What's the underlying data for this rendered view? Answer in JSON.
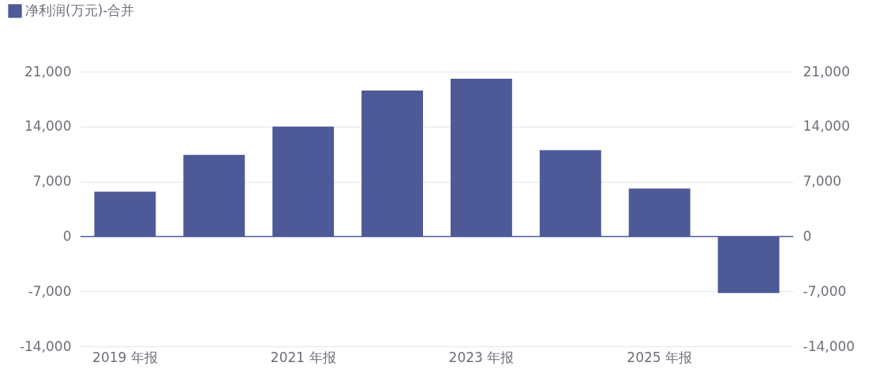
{
  "chart_data": {
    "type": "bar",
    "categories": [
      "2019 年报",
      null,
      "2021 年报",
      null,
      "2023 年报",
      null,
      "2025 年报",
      null
    ],
    "series": [
      {
        "name": "净利润(万元)-合并",
        "color": "#4e5a97",
        "values": [
          5700,
          10400,
          14000,
          18600,
          20100,
          11000,
          6100,
          -7200
        ]
      }
    ],
    "ylim": [
      -14000,
      21000
    ],
    "yticks": [
      {
        "value": -14000,
        "label": "-14,000"
      },
      {
        "value": -7000,
        "label": "-7,000"
      },
      0,
      {
        "value": 7000,
        "label": "7,000"
      },
      {
        "value": 14000,
        "label": "14,000"
      },
      {
        "value": 21000,
        "label": "21,000"
      }
    ],
    "y2lim": [
      -14000,
      21000
    ],
    "y2ticks": [
      {
        "value": -14000,
        "label": "-14,000"
      },
      {
        "value": -7000,
        "label": "-7,000"
      },
      0,
      {
        "value": 7000,
        "label": "7,000"
      },
      {
        "value": 14000,
        "label": "14,000"
      },
      {
        "value": 21000,
        "label": "21,000"
      }
    ],
    "ref_lines": [
      {
        "axis": "y",
        "value": 0,
        "color": "#4e5a97"
      }
    ],
    "grid": "y",
    "legend": "top left"
  }
}
